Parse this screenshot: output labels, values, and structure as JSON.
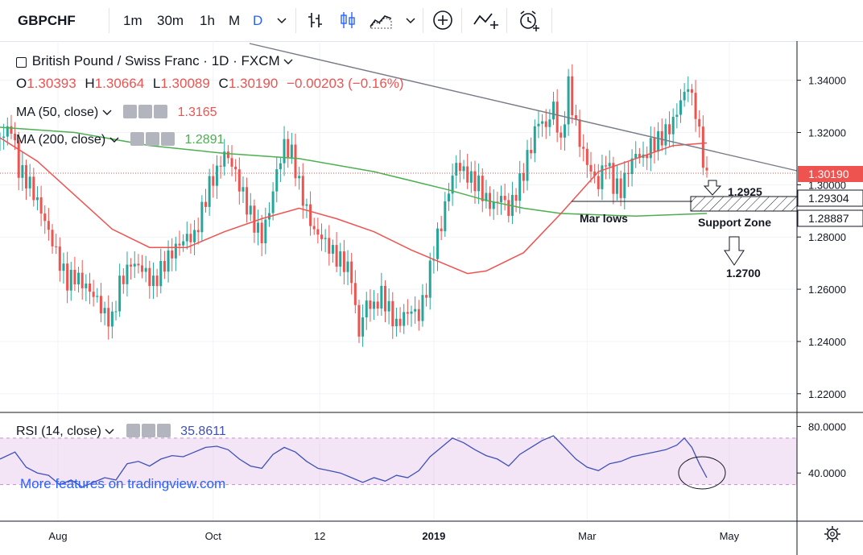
{
  "toolbar": {
    "symbol": "GBPCHF",
    "intervals": [
      "1m",
      "30m",
      "1h",
      "M",
      "D"
    ],
    "active_interval": "D",
    "icons": [
      "chevron-down-icon",
      "bar-chart-icon",
      "candlestick-icon",
      "area-chart-icon",
      "chevron-down-icon",
      "add-icon",
      "indicator-icon",
      "alert-icon"
    ]
  },
  "legend": {
    "title": "British Pound / Swiss Franc · 1D · FXCM",
    "open_label": "O",
    "open": "1.30393",
    "high_label": "H",
    "high": "1.30664",
    "low_label": "L",
    "low": "1.30089",
    "close_label": "C",
    "close": "1.30190",
    "change": "−0.00203 (−0.16%)",
    "ma50_label": "MA (50, close)",
    "ma50_value": "1.3165",
    "ma200_label": "MA (200, close)",
    "ma200_value": "1.2891",
    "rsi_label": "RSI (14, close)",
    "rsi_value": "35.8611",
    "watermark": "More features on tradingview.com"
  },
  "colors": {
    "up": "#26a69a",
    "down": "#ef5350",
    "ma50": "#ef5350",
    "ma200": "#4caf50",
    "rsi": "#3f51b5",
    "rsi_band": "#e1bee7",
    "trendline": "#787b86"
  },
  "annotations": {
    "target1": "1.2925",
    "mar_lows": "Mar lows",
    "support_zone": "Support Zone",
    "target2": "1.2700"
  },
  "chart_data": {
    "type": "candlestick",
    "y_ticks": [
      "1.34000",
      "1.32000",
      "1.30000",
      "1.28000",
      "1.26000",
      "1.24000",
      "1.22000"
    ],
    "x_ticks": [
      "Aug",
      "Oct",
      "12",
      "2019",
      "Mar",
      "May"
    ],
    "ylim": [
      1.215,
      1.355
    ],
    "price_labels": {
      "last": "1.30190",
      "zone_top": "1.29304",
      "zone_bottom": "1.28887"
    },
    "close_series": [
      [
        0,
        1.318
      ],
      [
        6,
        1.322
      ],
      [
        10,
        1.306
      ],
      [
        16,
        1.3
      ],
      [
        22,
        1.29
      ],
      [
        28,
        1.278
      ],
      [
        32,
        1.27
      ],
      [
        36,
        1.263
      ],
      [
        40,
        1.265
      ],
      [
        46,
        1.261
      ],
      [
        52,
        1.256
      ],
      [
        56,
        1.25
      ],
      [
        60,
        1.248
      ],
      [
        64,
        1.262
      ],
      [
        70,
        1.27
      ],
      [
        76,
        1.268
      ],
      [
        82,
        1.262
      ],
      [
        88,
        1.27
      ],
      [
        94,
        1.276
      ],
      [
        100,
        1.28
      ],
      [
        104,
        1.28
      ],
      [
        108,
        1.29
      ],
      [
        112,
        1.3
      ],
      [
        116,
        1.305
      ],
      [
        120,
        1.312
      ],
      [
        124,
        1.308
      ],
      [
        128,
        1.3
      ],
      [
        132,
        1.292
      ],
      [
        136,
        1.285
      ],
      [
        140,
        1.28
      ],
      [
        144,
        1.29
      ],
      [
        148,
        1.305
      ],
      [
        152,
        1.315
      ],
      [
        156,
        1.312
      ],
      [
        160,
        1.3
      ],
      [
        164,
        1.29
      ],
      [
        168,
        1.282
      ],
      [
        172,
        1.28
      ],
      [
        176,
        1.276
      ],
      [
        180,
        1.272
      ],
      [
        184,
        1.27
      ],
      [
        188,
        1.265
      ],
      [
        190,
        1.252
      ],
      [
        192,
        1.243
      ],
      [
        196,
        1.255
      ],
      [
        200,
        1.253
      ],
      [
        204,
        1.258
      ],
      [
        208,
        1.252
      ],
      [
        212,
        1.246
      ],
      [
        216,
        1.25
      ],
      [
        220,
        1.252
      ],
      [
        224,
        1.25
      ],
      [
        228,
        1.26
      ],
      [
        232,
        1.275
      ],
      [
        236,
        1.285
      ],
      [
        240,
        1.298
      ],
      [
        244,
        1.308
      ],
      [
        248,
        1.305
      ],
      [
        252,
        1.302
      ],
      [
        256,
        1.3
      ],
      [
        260,
        1.294
      ],
      [
        264,
        1.292
      ],
      [
        268,
        1.296
      ],
      [
        272,
        1.29
      ],
      [
        276,
        1.297
      ],
      [
        280,
        1.305
      ],
      [
        284,
        1.315
      ],
      [
        288,
        1.325
      ],
      [
        292,
        1.322
      ],
      [
        296,
        1.33
      ],
      [
        300,
        1.315
      ],
      [
        304,
        1.338
      ],
      [
        308,
        1.322
      ],
      [
        312,
        1.312
      ],
      [
        316,
        1.305
      ],
      [
        320,
        1.3
      ],
      [
        324,
        1.31
      ],
      [
        328,
        1.3
      ],
      [
        332,
        1.298
      ],
      [
        336,
        1.306
      ],
      [
        340,
        1.312
      ],
      [
        344,
        1.31
      ],
      [
        348,
        1.315
      ],
      [
        352,
        1.317
      ],
      [
        356,
        1.32
      ],
      [
        360,
        1.324
      ],
      [
        364,
        1.332
      ],
      [
        368,
        1.338
      ],
      [
        372,
        1.328
      ],
      [
        376,
        1.31
      ],
      [
        378,
        1.302
      ]
    ],
    "ma50_series": [
      [
        0,
        1.318
      ],
      [
        20,
        1.309
      ],
      [
        40,
        1.296
      ],
      [
        60,
        1.283
      ],
      [
        80,
        1.276
      ],
      [
        100,
        1.276
      ],
      [
        120,
        1.282
      ],
      [
        140,
        1.287
      ],
      [
        160,
        1.291
      ],
      [
        180,
        1.287
      ],
      [
        200,
        1.282
      ],
      [
        220,
        1.275
      ],
      [
        240,
        1.269
      ],
      [
        250,
        1.266
      ],
      [
        260,
        1.267
      ],
      [
        280,
        1.274
      ],
      [
        300,
        1.289
      ],
      [
        320,
        1.305
      ],
      [
        340,
        1.31
      ],
      [
        360,
        1.315
      ],
      [
        378,
        1.316
      ]
    ],
    "ma200_series": [
      [
        0,
        1.322
      ],
      [
        40,
        1.32
      ],
      [
        80,
        1.315
      ],
      [
        120,
        1.312
      ],
      [
        160,
        1.31
      ],
      [
        200,
        1.305
      ],
      [
        240,
        1.298
      ],
      [
        260,
        1.294
      ],
      [
        280,
        1.291
      ],
      [
        300,
        1.289
      ],
      [
        340,
        1.288
      ],
      [
        378,
        1.289
      ]
    ],
    "rsi": {
      "y_ticks": [
        "80.0000",
        "40.0000"
      ],
      "band": [
        30,
        70
      ],
      "ylim": [
        0,
        90
      ],
      "series": [
        [
          0,
          52
        ],
        [
          8,
          58
        ],
        [
          14,
          45
        ],
        [
          20,
          40
        ],
        [
          26,
          38
        ],
        [
          32,
          30
        ],
        [
          38,
          34
        ],
        [
          44,
          28
        ],
        [
          50,
          32
        ],
        [
          56,
          36
        ],
        [
          62,
          34
        ],
        [
          68,
          48
        ],
        [
          74,
          50
        ],
        [
          80,
          46
        ],
        [
          86,
          52
        ],
        [
          92,
          55
        ],
        [
          98,
          54
        ],
        [
          104,
          58
        ],
        [
          110,
          62
        ],
        [
          116,
          63
        ],
        [
          122,
          60
        ],
        [
          128,
          52
        ],
        [
          134,
          46
        ],
        [
          140,
          44
        ],
        [
          146,
          56
        ],
        [
          152,
          62
        ],
        [
          158,
          58
        ],
        [
          164,
          50
        ],
        [
          170,
          44
        ],
        [
          176,
          42
        ],
        [
          182,
          40
        ],
        [
          188,
          36
        ],
        [
          194,
          32
        ],
        [
          200,
          36
        ],
        [
          206,
          33
        ],
        [
          212,
          38
        ],
        [
          218,
          36
        ],
        [
          224,
          42
        ],
        [
          230,
          54
        ],
        [
          236,
          62
        ],
        [
          242,
          70
        ],
        [
          248,
          66
        ],
        [
          254,
          60
        ],
        [
          260,
          55
        ],
        [
          266,
          52
        ],
        [
          272,
          46
        ],
        [
          278,
          56
        ],
        [
          284,
          62
        ],
        [
          290,
          68
        ],
        [
          296,
          72
        ],
        [
          302,
          62
        ],
        [
          308,
          52
        ],
        [
          314,
          45
        ],
        [
          320,
          42
        ],
        [
          326,
          48
        ],
        [
          332,
          50
        ],
        [
          338,
          54
        ],
        [
          344,
          56
        ],
        [
          350,
          58
        ],
        [
          356,
          60
        ],
        [
          362,
          64
        ],
        [
          366,
          70
        ],
        [
          370,
          62
        ],
        [
          374,
          48
        ],
        [
          378,
          36
        ]
      ]
    }
  }
}
